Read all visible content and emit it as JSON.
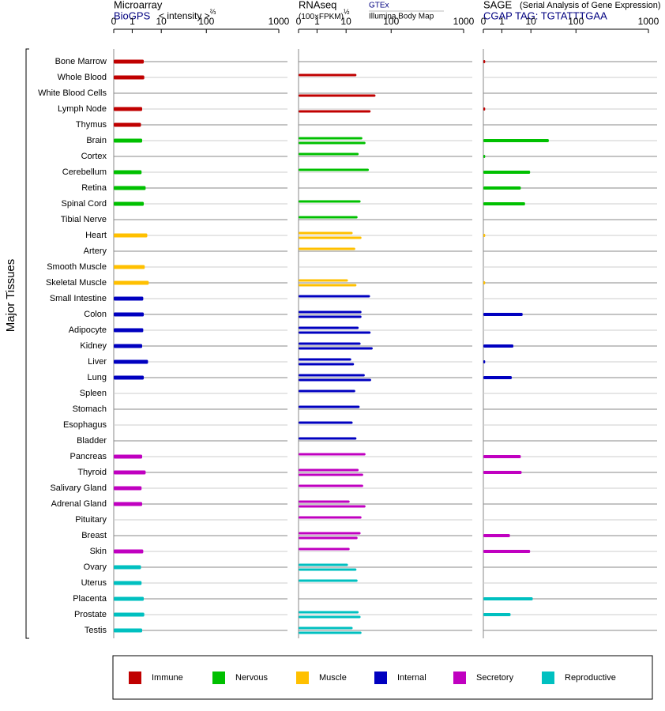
{
  "y_label": "Major Tissues",
  "tissue_groups": [
    {
      "name": "Immune",
      "color": "#c00000",
      "tissues": [
        "Bone Marrow",
        "Whole Blood",
        "White Blood Cells",
        "Lymph Node",
        "Thymus"
      ]
    },
    {
      "name": "Nervous",
      "color": "#00c000",
      "tissues": [
        "Brain",
        "Cortex",
        "Cerebellum",
        "Retina",
        "Spinal Cord",
        "Tibial Nerve"
      ]
    },
    {
      "name": "Muscle",
      "color": "#ffc000",
      "tissues": [
        "Heart",
        "Artery",
        "Smooth Muscle",
        "Skeletal Muscle"
      ]
    },
    {
      "name": "Internal",
      "color": "#0000c0",
      "tissues": [
        "Small Intestine",
        "Colon",
        "Adipocyte",
        "Kidney",
        "Liver",
        "Lung",
        "Spleen",
        "Stomach",
        "Esophagus",
        "Bladder"
      ]
    },
    {
      "name": "Secretory",
      "color": "#c000c0",
      "tissues": [
        "Pancreas",
        "Thyroid",
        "Salivary Gland",
        "Adrenal Gland",
        "Pituitary",
        "Breast",
        "Skin"
      ]
    },
    {
      "name": "Reproductive",
      "color": "#00c0c0",
      "tissues": [
        "Ovary",
        "Uterus",
        "Placenta",
        "Prostate",
        "Testis"
      ]
    }
  ],
  "chart_data": [
    {
      "type": "bar",
      "title": "Microarray",
      "source": "BioGPS",
      "unit": "< intensity >",
      "unit_power": "⅔",
      "xlim": [
        0,
        1000
      ],
      "xticks": [
        0,
        1,
        10,
        100,
        1000
      ],
      "values": [
        2.5,
        2.6,
        null,
        2.2,
        2.0,
        2.2,
        null,
        2.1,
        2.9,
        2.5,
        null,
        3.3,
        null,
        2.7,
        3.7,
        2.4,
        2.5,
        2.4,
        2.2,
        3.5,
        2.5,
        null,
        null,
        null,
        null,
        2.2,
        2.9,
        2.1,
        2.2,
        null,
        null,
        2.4,
        2.0,
        2.1,
        2.5,
        2.6,
        2.2
      ]
    },
    {
      "type": "bar",
      "title": "RNAseq",
      "unit": "(100×FPKM)",
      "unit_power": "½",
      "xlim": [
        0,
        1000
      ],
      "xticks": [
        0,
        1,
        10,
        100,
        1000
      ],
      "series": [
        {
          "name": "GTEx",
          "values": [
            null,
            17,
            null,
            null,
            null,
            23,
            19,
            32,
            null,
            21,
            18,
            14,
            16,
            null,
            11,
            34,
            22,
            19,
            21,
            13,
            26,
            16,
            20,
            14,
            17,
            27,
            19,
            24,
            12,
            22,
            21,
            12,
            11,
            18,
            null,
            19,
            14
          ]
        },
        {
          "name": "Illumina Body Map",
          "values": [
            null,
            null,
            45,
            35,
            null,
            27,
            null,
            null,
            null,
            null,
            null,
            22,
            null,
            null,
            17,
            null,
            22,
            35,
            39,
            15,
            36,
            null,
            null,
            null,
            null,
            null,
            24,
            null,
            27,
            null,
            18,
            null,
            17,
            null,
            null,
            21,
            22
          ]
        }
      ]
    },
    {
      "type": "bar",
      "title": "SAGE",
      "subtitle": "(Serial Analysis of Gene Expression)",
      "source": "CGAP TAG: TGTATTTGAA",
      "xlim": [
        0,
        1000
      ],
      "xticks": [
        0,
        1,
        10,
        100,
        1000
      ],
      "values": [
        0.1,
        null,
        null,
        0.1,
        null,
        25,
        0.1,
        9.4,
        4.5,
        6.3,
        null,
        0.1,
        null,
        null,
        0.1,
        null,
        5.2,
        null,
        2.5,
        0.1,
        2.2,
        null,
        null,
        null,
        null,
        4.5,
        4.8,
        null,
        null,
        null,
        1.9,
        9.4,
        null,
        null,
        11,
        2.0,
        null
      ]
    }
  ]
}
